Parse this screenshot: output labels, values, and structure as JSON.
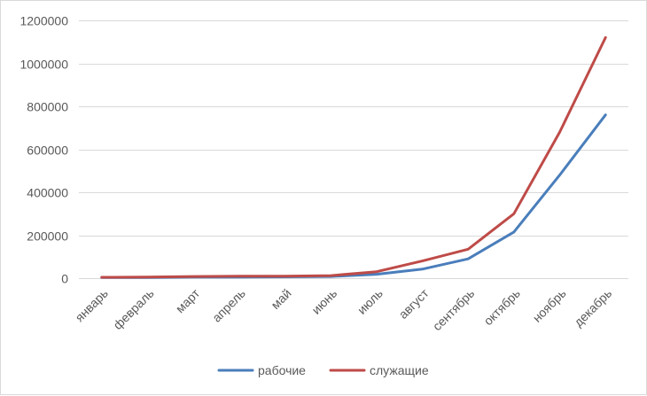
{
  "chart_data": {
    "type": "line",
    "title": "",
    "xlabel": "",
    "ylabel": "",
    "categories": [
      "январь",
      "февраль",
      "март",
      "апрель",
      "май",
      "июнь",
      "июль",
      "август",
      "сентябрь",
      "октябрь",
      "ноябрь",
      "декабрь"
    ],
    "ylim": [
      0,
      1200000
    ],
    "yticks": [
      0,
      200000,
      400000,
      600000,
      800000,
      1000000,
      1200000
    ],
    "grid": true,
    "legend_position": "bottom",
    "series": [
      {
        "name": "рабочие",
        "color": "#4a7ebb",
        "values": [
          3000,
          3500,
          5000,
          5500,
          6000,
          8000,
          18000,
          42000,
          90000,
          215000,
          480000,
          760000
        ]
      },
      {
        "name": "служащие",
        "color": "#be4b48",
        "values": [
          4000,
          5000,
          8000,
          9000,
          9500,
          12000,
          30000,
          80000,
          135000,
          300000,
          680000,
          1120000
        ]
      }
    ]
  }
}
